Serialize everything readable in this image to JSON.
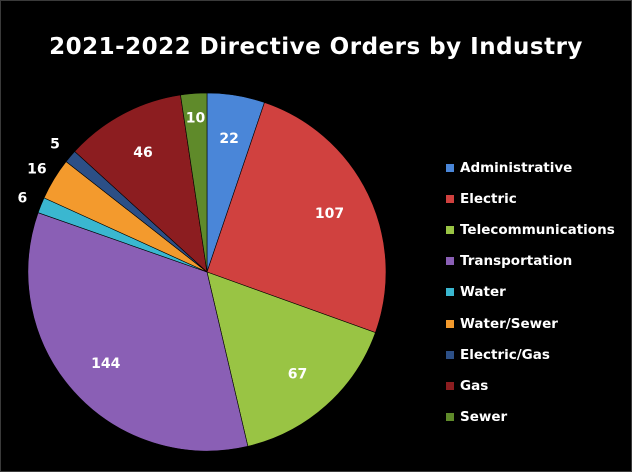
{
  "chart_data": {
    "type": "pie",
    "title": "2021-2022 Directive Orders by Industry",
    "legend_position": "right",
    "slices": [
      {
        "label": "Administrative",
        "value": 22,
        "color": "#4a86d8"
      },
      {
        "label": "Electric",
        "value": 107,
        "color": "#d0413f"
      },
      {
        "label": "Telecommunications",
        "value": 67,
        "color": "#99c444"
      },
      {
        "label": "Transportation",
        "value": 144,
        "color": "#8a5fb5"
      },
      {
        "label": "Water",
        "value": 6,
        "color": "#3ab7d0"
      },
      {
        "label": "Water/Sewer",
        "value": 16,
        "color": "#f39a2d"
      },
      {
        "label": "Electric/Gas",
        "value": 5,
        "color": "#2c4f86"
      },
      {
        "label": "Gas",
        "value": 46,
        "color": "#8c1d20"
      },
      {
        "label": "Sewer",
        "value": 10,
        "color": "#5f8a2a"
      }
    ]
  }
}
